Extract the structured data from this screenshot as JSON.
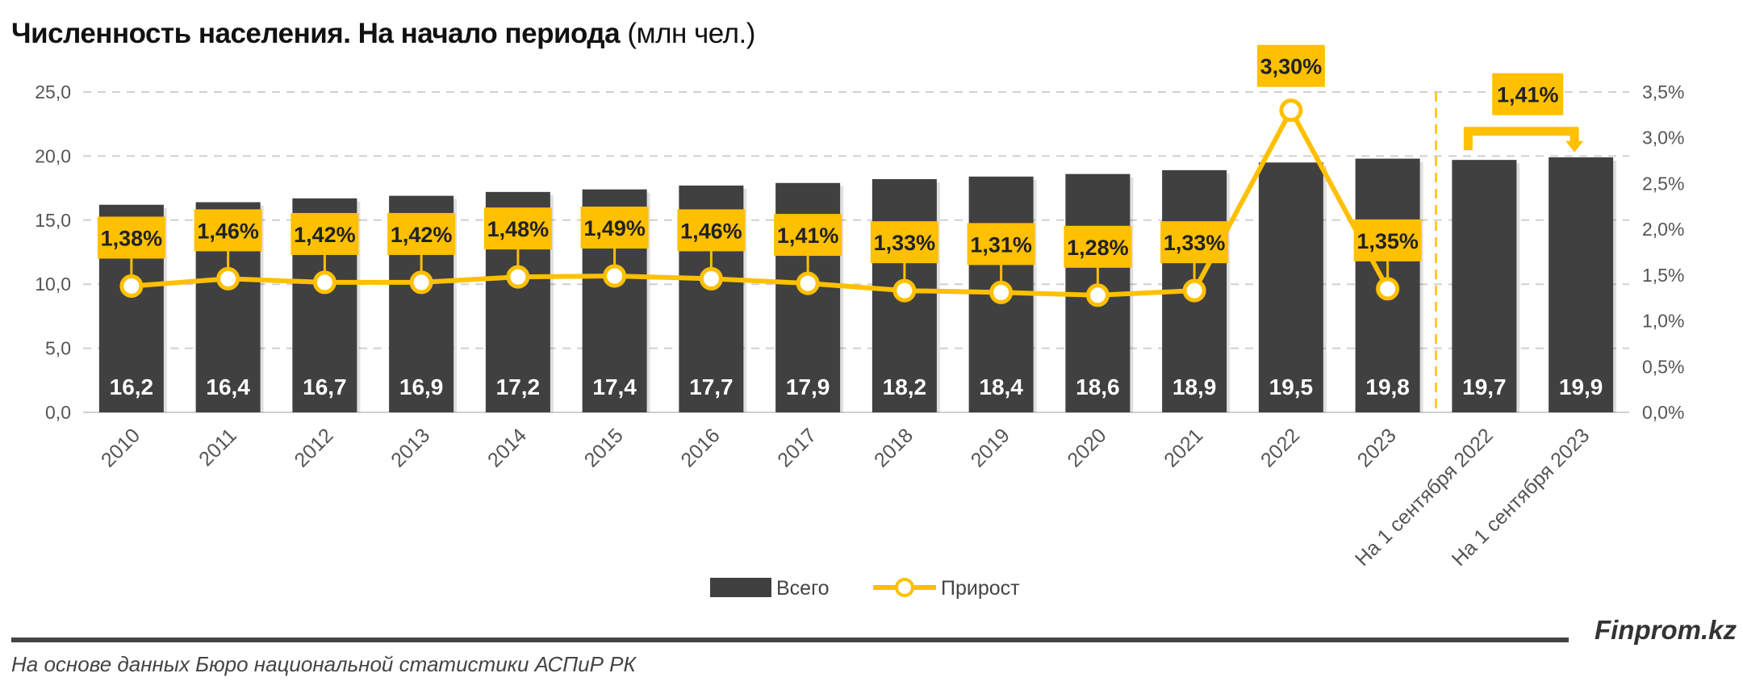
{
  "chart_data": {
    "type": "bar+line",
    "title": "Численность населения. На начало периода",
    "title_unit": "(млн чел.)",
    "categories": [
      "2010",
      "2011",
      "2012",
      "2013",
      "2014",
      "2015",
      "2016",
      "2017",
      "2018",
      "2019",
      "2020",
      "2021",
      "2022",
      "2023",
      "На 1 сентября 2022",
      "На 1 сентября 2023"
    ],
    "series": [
      {
        "name": "Всего",
        "type": "bar",
        "axis": "left",
        "color": "#404040",
        "values": [
          16.2,
          16.4,
          16.7,
          16.9,
          17.2,
          17.4,
          17.7,
          17.9,
          18.2,
          18.4,
          18.6,
          18.9,
          19.5,
          19.8,
          19.7,
          19.9
        ],
        "labels": [
          "16,2",
          "16,4",
          "16,7",
          "16,9",
          "17,2",
          "17,4",
          "17,7",
          "17,9",
          "18,2",
          "18,4",
          "18,6",
          "18,9",
          "19,5",
          "19,8",
          "19,7",
          "19,9"
        ]
      },
      {
        "name": "Прирост",
        "type": "line",
        "axis": "right",
        "color": "#FFC000",
        "values": [
          1.38,
          1.46,
          1.42,
          1.42,
          1.48,
          1.49,
          1.46,
          1.41,
          1.33,
          1.31,
          1.28,
          1.33,
          3.3,
          1.35,
          null,
          null
        ],
        "labels": [
          "1,38%",
          "1,46%",
          "1,42%",
          "1,42%",
          "1,48%",
          "1,49%",
          "1,46%",
          "1,41%",
          "1,33%",
          "1,31%",
          "1,28%",
          "1,33%",
          "3,30%",
          "1,35%",
          null,
          null
        ]
      }
    ],
    "annotation": {
      "text": "1,41%",
      "from": "На 1 сентября 2022",
      "to": "На 1 сентября 2023"
    },
    "y_left": {
      "range": [
        0,
        25
      ],
      "ticks": [
        "0,0",
        "5,0",
        "10,0",
        "15,0",
        "20,0",
        "25,0"
      ]
    },
    "y_right": {
      "range": [
        0,
        3.5
      ],
      "ticks": [
        "0,0%",
        "0,5%",
        "1,0%",
        "1,5%",
        "2,0%",
        "2,5%",
        "3,0%",
        "3,5%"
      ]
    },
    "grid": true,
    "legend": {
      "placement": "bottom",
      "entries": [
        "Всего",
        "Прирост"
      ]
    }
  },
  "footer": {
    "source": "На основе данных Бюро национальной статистики АСПиР РК",
    "brand": "Finprom.kz"
  }
}
